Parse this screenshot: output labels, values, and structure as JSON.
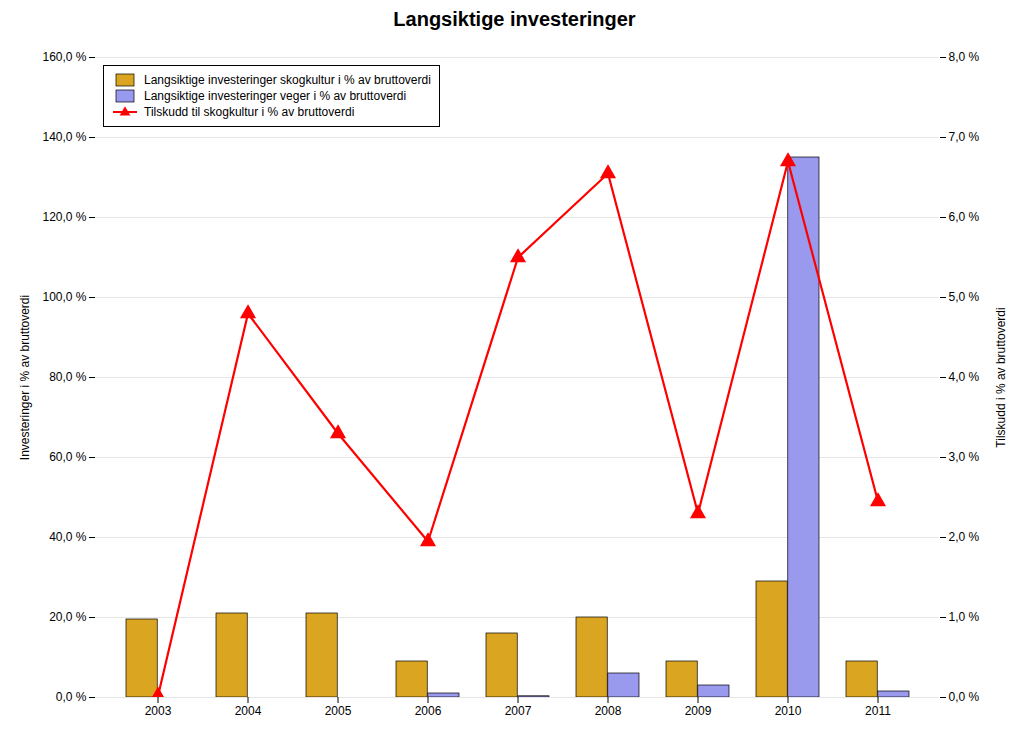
{
  "chart_data": {
    "type": "bar",
    "title": "Langsiktige investeringer",
    "categories": [
      "2003",
      "2004",
      "2005",
      "2006",
      "2007",
      "2008",
      "2009",
      "2010",
      "2011"
    ],
    "series": [
      {
        "name": "Langsiktige investeringer skogkultur i % av bruttoverdi",
        "type": "bar",
        "color": "#DAA520",
        "values": [
          19.5,
          21.0,
          21.0,
          9.0,
          16.0,
          20.0,
          9.0,
          29.0,
          9.0
        ]
      },
      {
        "name": "Langsiktige investeringer veger i % av bruttoverdi",
        "type": "bar",
        "color": "#9999EE",
        "values": [
          0.0,
          0.0,
          0.0,
          1.0,
          0.3,
          6.0,
          3.0,
          135.0,
          1.5
        ]
      },
      {
        "name": "Tilskudd til skogkultur i % av bruttoverdi",
        "type": "line",
        "axis": "y2",
        "color": "#FF0000",
        "marker": "triangle",
        "line_style": "solid",
        "values": [
          0.02,
          4.8,
          3.3,
          1.95,
          5.5,
          6.55,
          2.3,
          6.7,
          2.45
        ]
      }
    ],
    "ylabel": "Investeringer i % av bruttoverdi",
    "y2label": "Tilskudd i % av bruttoverdi",
    "ylim": [
      0,
      160
    ],
    "yticks": [
      {
        "value": 0,
        "label": "0,0 %"
      },
      {
        "value": 20,
        "label": "20,0 %"
      },
      {
        "value": 40,
        "label": "40,0 %"
      },
      {
        "value": 60,
        "label": "60,0 %"
      },
      {
        "value": 80,
        "label": "80,0 %"
      },
      {
        "value": 100,
        "label": "100,0 %"
      },
      {
        "value": 120,
        "label": "120,0 %"
      },
      {
        "value": 140,
        "label": "140,0 %"
      },
      {
        "value": 160,
        "label": "160,0 %"
      }
    ],
    "y2lim": [
      0,
      8
    ],
    "y2ticks": [
      {
        "value": 0,
        "label": "0,0 %"
      },
      {
        "value": 1,
        "label": "1,0 %"
      },
      {
        "value": 2,
        "label": "2,0 %"
      },
      {
        "value": 3,
        "label": "3,0 %"
      },
      {
        "value": 4,
        "label": "4,0 %"
      },
      {
        "value": 5,
        "label": "5,0 %"
      },
      {
        "value": 6,
        "label": "6,0 %"
      },
      {
        "value": 7,
        "label": "7,0 %"
      },
      {
        "value": 8,
        "label": "8,0 %"
      }
    ],
    "grid": true,
    "legend": "upper left"
  }
}
